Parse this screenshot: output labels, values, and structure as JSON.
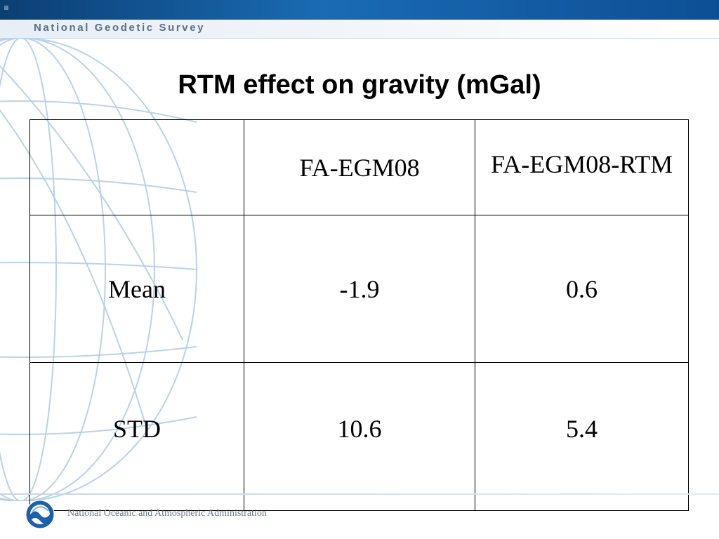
{
  "header": {
    "agency_name": "National Geodetic Survey"
  },
  "slide": {
    "title": "RTM effect on gravity (mGal)"
  },
  "table": {
    "columns": [
      "",
      "FA-EGM08",
      "FA-EGM08-RTM"
    ],
    "rows": [
      {
        "label": "Mean",
        "values": [
          "-1.9",
          "0.6"
        ]
      },
      {
        "label": "STD",
        "values": [
          "10.6",
          "5.4"
        ]
      }
    ]
  },
  "footer": {
    "organization": "National Oceanic and Atmospheric Administration",
    "logo": "noaa-logo"
  },
  "colors": {
    "header_bar": "#0b3f74",
    "header_band": "#e7eef6",
    "globe_lines": "#aecbe6"
  }
}
